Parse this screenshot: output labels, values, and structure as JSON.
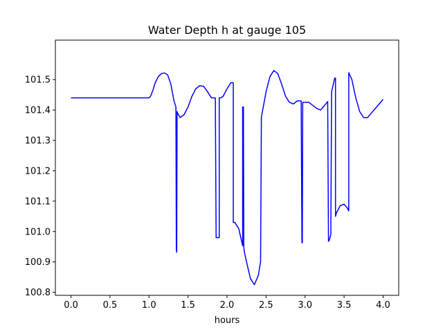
{
  "chart_data": {
    "type": "line",
    "title": "Water Depth h at gauge 105",
    "xlabel": "hours",
    "ylabel": "",
    "xlim": [
      -0.2,
      4.2
    ],
    "ylim": [
      100.79,
      101.63
    ],
    "xticks": [
      0.0,
      0.5,
      1.0,
      1.5,
      2.0,
      2.5,
      3.0,
      3.5,
      4.0
    ],
    "xtick_labels": [
      "0.0",
      "0.5",
      "1.0",
      "1.5",
      "2.0",
      "2.5",
      "3.0",
      "3.5",
      "4.0"
    ],
    "yticks": [
      100.8,
      100.9,
      101.0,
      101.1,
      101.2,
      101.3,
      101.4,
      101.5
    ],
    "ytick_labels": [
      "100.8",
      "100.9",
      "101.0",
      "101.1",
      "101.2",
      "101.3",
      "101.4",
      "101.5"
    ],
    "grid": false,
    "series": [
      {
        "color": "#0000ff",
        "x": [
          0.0,
          0.5,
          1.0,
          1.02,
          1.05,
          1.08,
          1.12,
          1.16,
          1.2,
          1.24,
          1.28,
          1.32,
          1.345,
          1.35,
          1.355,
          1.36,
          1.365,
          1.4,
          1.45,
          1.5,
          1.55,
          1.6,
          1.65,
          1.7,
          1.75,
          1.8,
          1.85,
          1.86,
          1.865,
          1.9,
          1.9,
          1.92,
          1.95,
          2.0,
          2.05,
          2.08,
          2.08,
          2.1,
          2.15,
          2.2,
          2.2,
          2.21,
          2.215,
          2.22,
          2.25,
          2.3,
          2.35,
          2.4,
          2.43,
          2.44,
          2.45,
          2.5,
          2.55,
          2.6,
          2.65,
          2.7,
          2.75,
          2.8,
          2.85,
          2.9,
          2.95,
          2.96,
          2.965,
          2.97,
          3.0,
          3.05,
          3.1,
          3.15,
          3.2,
          3.25,
          3.29,
          3.3,
          3.305,
          3.33,
          3.34,
          3.38,
          3.39,
          3.39,
          3.4,
          3.45,
          3.5,
          3.54,
          3.56,
          3.56,
          3.6,
          3.65,
          3.7,
          3.75,
          3.8,
          3.85,
          3.9,
          3.95,
          4.0
        ],
        "y": [
          101.44,
          101.44,
          101.44,
          101.445,
          101.465,
          101.49,
          101.51,
          101.52,
          101.522,
          101.515,
          101.485,
          101.43,
          101.41,
          100.94,
          100.932,
          101.395,
          101.39,
          101.375,
          101.385,
          101.41,
          101.445,
          101.47,
          101.48,
          101.478,
          101.46,
          101.44,
          101.44,
          100.98,
          100.98,
          100.98,
          101.44,
          101.44,
          101.445,
          101.47,
          101.49,
          101.49,
          101.03,
          101.03,
          101.01,
          100.953,
          101.41,
          101.41,
          100.95,
          100.935,
          100.9,
          100.845,
          100.825,
          100.855,
          100.9,
          101.375,
          101.39,
          101.46,
          101.51,
          101.53,
          101.52,
          101.485,
          101.445,
          101.425,
          101.42,
          101.43,
          101.43,
          100.963,
          100.963,
          101.425,
          101.425,
          101.425,
          101.415,
          101.405,
          101.4,
          101.415,
          101.428,
          100.968,
          100.968,
          100.99,
          101.46,
          101.505,
          101.505,
          101.05,
          101.06,
          101.085,
          101.09,
          101.078,
          101.068,
          101.523,
          101.5,
          101.44,
          101.395,
          101.375,
          101.375,
          101.39,
          101.405,
          101.42,
          101.435
        ]
      }
    ]
  }
}
